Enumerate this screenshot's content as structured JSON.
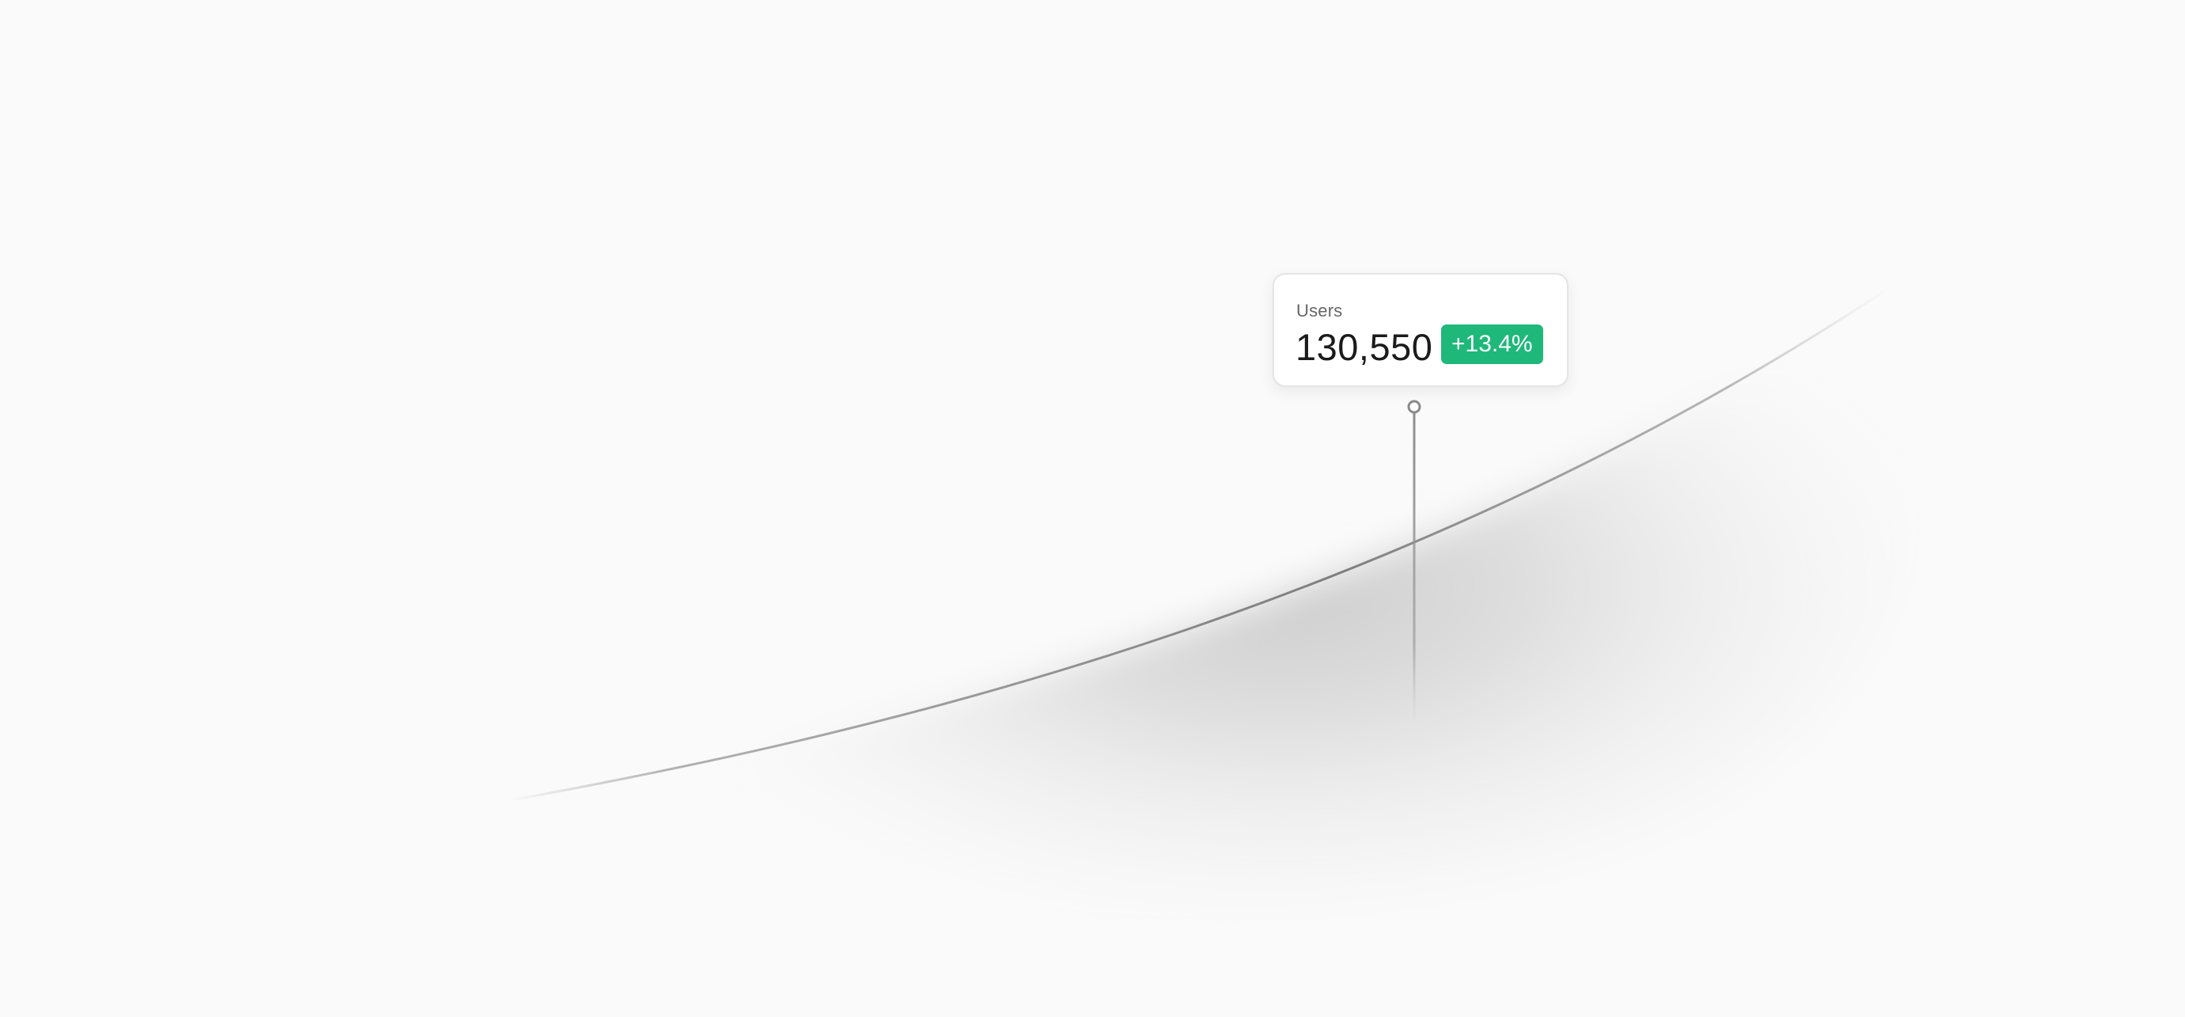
{
  "tooltip": {
    "label": "Users",
    "value": "130,550",
    "change": "+13.4%",
    "change_color": "#1db87a"
  },
  "chart_data": {
    "type": "area",
    "title": "",
    "xlabel": "",
    "ylabel": "",
    "grid": false,
    "legend": "none",
    "shape": "exponential growth curve",
    "highlight": {
      "label": "Users",
      "value": 130550,
      "change_pct": 13.4
    },
    "colors": {
      "line": "#8a8a8a",
      "area": "#cfd0cf",
      "marker": "#8a8a8a"
    }
  }
}
